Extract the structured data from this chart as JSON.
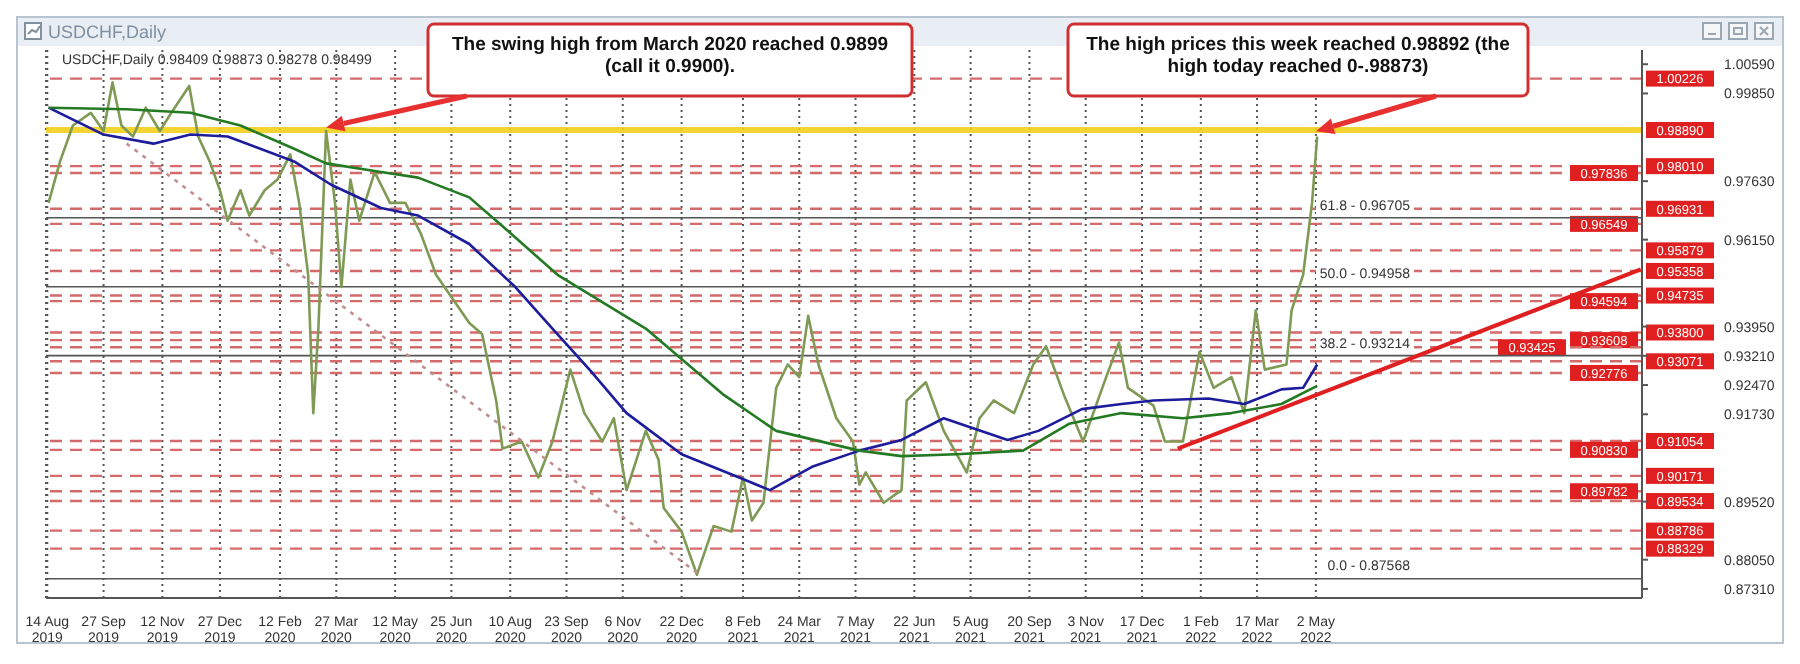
{
  "chart_data": {
    "type": "line",
    "title": "USDCHF,Daily",
    "subtitle": "USDCHF,Daily  0.98409 0.98873 0.98278 0.98499",
    "xlim": [
      "2019-08-13",
      "2023-01-12"
    ],
    "xticks": [
      {
        "value": "2019-08-14",
        "label": "14 Aug 2019"
      },
      {
        "value": "2019-09-27",
        "label": "27 Sep 2019"
      },
      {
        "value": "2019-11-12",
        "label": "12 Nov 2019"
      },
      {
        "value": "2019-12-27",
        "label": "27 Dec 2019"
      },
      {
        "value": "2020-02-12",
        "label": "12 Feb 2020"
      },
      {
        "value": "2020-03-27",
        "label": "27 Mar 2020"
      },
      {
        "value": "2020-05-12",
        "label": "12 May 2020"
      },
      {
        "value": "2020-06-25",
        "label": "25 Jun 2020"
      },
      {
        "value": "2020-08-10",
        "label": "10 Aug 2020"
      },
      {
        "value": "2020-09-23",
        "label": "23 Sep 2020"
      },
      {
        "value": "2020-11-06",
        "label": "6 Nov 2020"
      },
      {
        "value": "2020-12-22",
        "label": "22 Dec 2020"
      },
      {
        "value": "2021-02-08",
        "label": "8 Feb 2021"
      },
      {
        "value": "2021-03-24",
        "label": "24 Mar 2021"
      },
      {
        "value": "2021-05-07",
        "label": "7 May 2021"
      },
      {
        "value": "2021-06-22",
        "label": "22 Jun 2021"
      },
      {
        "value": "2021-08-05",
        "label": "5 Aug 2021"
      },
      {
        "value": "2021-09-20",
        "label": "20 Sep 2021"
      },
      {
        "value": "2021-11-03",
        "label": "3 Nov 2021"
      },
      {
        "value": "2021-12-17",
        "label": "17 Dec 2021"
      },
      {
        "value": "2022-02-01",
        "label": "1 Feb 2022"
      },
      {
        "value": "2022-03-17",
        "label": "17 Mar 2022"
      },
      {
        "value": "2022-05-02",
        "label": "2 May 2022"
      }
    ],
    "ylim": [
      0.8708,
      1.0095
    ],
    "yticks": [
      {
        "value": 1.0059,
        "label": "1.00590"
      },
      {
        "value": 0.9985,
        "label": "0.99850"
      },
      {
        "value": 0.9763,
        "label": "0.97630"
      },
      {
        "value": 0.9615,
        "label": "0.96150"
      },
      {
        "value": 0.9395,
        "label": "0.93950"
      },
      {
        "value": 0.9321,
        "label": "0.93210"
      },
      {
        "value": 0.9247,
        "label": "0.92470"
      },
      {
        "value": 0.9173,
        "label": "0.91730"
      },
      {
        "value": 0.8952,
        "label": "0.89520"
      },
      {
        "value": 0.8805,
        "label": "0.88050"
      },
      {
        "value": 0.8731,
        "label": "0.87310"
      }
    ],
    "grid": "x",
    "marker": "none",
    "series": [
      {
        "type": "line",
        "color": "#7f9a55",
        "line_style": "solid",
        "x": [
          "2019-08-15",
          "2019-08-24",
          "2019-09-03",
          "2019-09-17",
          "2019-09-27",
          "2019-10-04",
          "2019-10-11",
          "2019-10-20",
          "2019-10-30",
          "2019-11-10",
          "2019-11-19",
          "2019-12-03",
          "2019-12-10",
          "2019-12-19",
          "2019-12-27",
          "2020-01-02",
          "2020-01-12",
          "2020-01-19",
          "2020-01-31",
          "2020-02-10",
          "2020-02-20",
          "2020-02-27",
          "2020-03-05",
          "2020-03-09",
          "2020-03-13",
          "2020-03-19",
          "2020-03-26",
          "2020-03-31",
          "2020-04-07",
          "2020-04-14",
          "2020-04-26",
          "2020-05-08",
          "2020-05-20",
          "2020-06-01",
          "2020-06-13",
          "2020-07-09",
          "2020-07-19",
          "2020-07-30",
          "2020-08-04",
          "2020-08-19",
          "2020-09-01",
          "2020-09-12",
          "2020-09-26",
          "2020-10-07",
          "2020-10-21",
          "2020-10-30",
          "2020-11-09",
          "2020-11-24",
          "2020-12-04",
          "2020-12-08",
          "2020-12-22",
          "2021-01-03",
          "2021-01-16",
          "2021-01-30",
          "2021-02-08",
          "2021-02-15",
          "2021-02-24",
          "2021-03-06",
          "2021-03-15",
          "2021-03-24",
          "2021-03-31",
          "2021-04-08",
          "2021-04-22",
          "2021-05-05",
          "2021-05-10",
          "2021-05-15",
          "2021-05-29",
          "2021-06-12",
          "2021-06-16",
          "2021-07-01",
          "2021-07-15",
          "2021-08-02",
          "2021-08-12",
          "2021-08-23",
          "2021-09-08",
          "2021-09-23",
          "2021-10-03",
          "2021-10-17",
          "2021-11-01",
          "2021-11-19",
          "2021-11-29",
          "2021-12-06",
          "2021-12-26",
          "2022-01-04",
          "2022-01-18",
          "2022-01-31",
          "2022-02-11",
          "2022-02-25",
          "2022-03-07",
          "2022-03-16",
          "2022-03-23",
          "2022-04-09",
          "2022-04-13",
          "2022-04-22",
          "2022-04-29",
          "2022-05-03"
        ],
        "values": [
          0.9708,
          0.9813,
          0.9904,
          0.9936,
          0.989,
          1.0013,
          0.9904,
          0.9876,
          0.9949,
          0.989,
          0.9936,
          1.0004,
          0.9876,
          0.9813,
          0.974,
          0.9663,
          0.974,
          0.9676,
          0.974,
          0.9767,
          0.9831,
          0.9708,
          0.9526,
          0.9176,
          0.939,
          0.989,
          0.9708,
          0.9495,
          0.9767,
          0.9663,
          0.9786,
          0.9708,
          0.9708,
          0.9631,
          0.9526,
          0.9404,
          0.9376,
          0.9208,
          0.9086,
          0.9104,
          0.9013,
          0.9104,
          0.9286,
          0.9176,
          0.9104,
          0.9163,
          0.8981,
          0.9131,
          0.9058,
          0.8936,
          0.8876,
          0.8767,
          0.889,
          0.8876,
          0.9013,
          0.8904,
          0.8949,
          0.924,
          0.9299,
          0.9267,
          0.9422,
          0.9299,
          0.9163,
          0.9104,
          0.8995,
          0.9026,
          0.8949,
          0.8981,
          0.9208,
          0.9254,
          0.9131,
          0.9026,
          0.9163,
          0.9208,
          0.9176,
          0.9299,
          0.9345,
          0.9222,
          0.9104,
          0.9267,
          0.9354,
          0.924,
          0.9195,
          0.9104,
          0.9104,
          0.9331,
          0.924,
          0.9267,
          0.9176,
          0.9436,
          0.9286,
          0.9299,
          0.9436,
          0.9526,
          0.9708,
          0.9876
        ]
      },
      {
        "type": "line",
        "color": "#1c1c9c",
        "line_style": "solid",
        "x": [
          "2019-08-15",
          "2019-09-27",
          "2019-11-05",
          "2019-12-04",
          "2020-01-02",
          "2020-02-23",
          "2020-03-23",
          "2020-05-01",
          "2020-05-30",
          "2020-07-09",
          "2020-08-14",
          "2020-09-12",
          "2020-10-11",
          "2020-11-09",
          "2020-12-22",
          "2021-02-05",
          "2021-03-01",
          "2021-04-03",
          "2021-05-10",
          "2021-06-12",
          "2021-07-15",
          "2021-09-03",
          "2021-09-27",
          "2021-10-31",
          "2021-12-01",
          "2021-12-26",
          "2022-02-07",
          "2022-03-07",
          "2022-04-05",
          "2022-04-22",
          "2022-05-03"
        ],
        "values": [
          0.9949,
          0.9881,
          0.9858,
          0.9881,
          0.9876,
          0.9813,
          0.9754,
          0.9695,
          0.9676,
          0.9604,
          0.9495,
          0.939,
          0.9286,
          0.9176,
          0.9072,
          0.9013,
          0.8981,
          0.904,
          0.9081,
          0.9108,
          0.9163,
          0.9108,
          0.9131,
          0.9186,
          0.9199,
          0.9208,
          0.9213,
          0.9199,
          0.9236,
          0.924,
          0.9299
        ]
      },
      {
        "type": "line",
        "color": "#237a23",
        "line_style": "solid",
        "x": [
          "2019-08-15",
          "2019-10-15",
          "2019-12-04",
          "2020-01-12",
          "2020-02-23",
          "2020-03-19",
          "2020-05-01",
          "2020-05-30",
          "2020-07-09",
          "2020-08-04",
          "2020-09-16",
          "2020-11-24",
          "2020-12-22",
          "2021-01-24",
          "2021-03-06",
          "2021-05-10",
          "2021-06-12",
          "2021-07-25",
          "2021-09-15",
          "2021-10-21",
          "2021-12-01",
          "2022-01-18",
          "2022-02-25",
          "2022-04-05",
          "2022-05-03"
        ],
        "values": [
          0.9949,
          0.9945,
          0.9936,
          0.9904,
          0.9845,
          0.9808,
          0.9786,
          0.9772,
          0.9722,
          0.9649,
          0.9526,
          0.939,
          0.9313,
          0.9222,
          0.9131,
          0.9081,
          0.9067,
          0.9072,
          0.9081,
          0.9149,
          0.9176,
          0.9163,
          0.9176,
          0.9199,
          0.9245
        ]
      },
      {
        "type": "line",
        "color": "#e02020",
        "line_style": "solid",
        "x": [
          "2022-01-14",
          "2023-01-11"
        ],
        "values": [
          0.9086,
          0.954
        ]
      },
      {
        "type": "line",
        "color": "#c09090",
        "line_style": "dotted",
        "x": [
          "2019-10-15",
          "2021-01-05"
        ],
        "values": [
          0.9858,
          0.8767
        ]
      }
    ],
    "bands": [
      {
        "axis": "y",
        "from": 0.9885,
        "to": 0.99,
        "label": "0.98890",
        "color": "#f2cf1a"
      }
    ],
    "ref_lines": [
      {
        "axis": "y",
        "value": 1.00226,
        "label": "1.00226",
        "color": "#d46a6a",
        "line_style": "dashed"
      },
      {
        "axis": "y",
        "value": 0.9801,
        "label": "0.98010",
        "color": "#d46a6a",
        "line_style": "dashed"
      },
      {
        "axis": "y",
        "value": 0.97836,
        "label": "0.97836",
        "color": "#d46a6a",
        "line_style": "dashed"
      },
      {
        "axis": "y",
        "value": 0.96931,
        "label": "0.96931",
        "color": "#d46a6a",
        "line_style": "dashed"
      },
      {
        "axis": "y",
        "value": 0.96549,
        "label": "0.96549",
        "color": "#d46a6a",
        "line_style": "dashed"
      },
      {
        "axis": "y",
        "value": 0.95879,
        "label": "0.95879",
        "color": "#d46a6a",
        "line_style": "dashed"
      },
      {
        "axis": "y",
        "value": 0.95358,
        "label": "0.95358",
        "color": "#d46a6a",
        "line_style": "dashed"
      },
      {
        "axis": "y",
        "value": 0.94735,
        "label": "0.94735",
        "color": "#d46a6a",
        "line_style": "dashed"
      },
      {
        "axis": "y",
        "value": 0.94594,
        "label": "0.94594",
        "color": "#d46a6a",
        "line_style": "dashed"
      },
      {
        "axis": "y",
        "value": 0.938,
        "label": "0.93800",
        "color": "#d46a6a",
        "line_style": "dashed"
      },
      {
        "axis": "y",
        "value": 0.93608,
        "label": "0.93608",
        "color": "#d46a6a",
        "line_style": "dashed"
      },
      {
        "axis": "y",
        "value": 0.93425,
        "label": "0.93425",
        "color": "#d46a6a",
        "line_style": "dashed"
      },
      {
        "axis": "y",
        "value": 0.93071,
        "label": "0.93071",
        "color": "#d46a6a",
        "line_style": "dashed"
      },
      {
        "axis": "y",
        "value": 0.92776,
        "label": "0.92776",
        "color": "#d46a6a",
        "line_style": "dashed"
      },
      {
        "axis": "y",
        "value": 0.91054,
        "label": "0.91054",
        "color": "#d46a6a",
        "line_style": "dashed"
      },
      {
        "axis": "y",
        "value": 0.9083,
        "label": "0.90830",
        "color": "#d46a6a",
        "line_style": "dashed"
      },
      {
        "axis": "y",
        "value": 0.90171,
        "label": "0.90171",
        "color": "#d46a6a",
        "line_style": "dashed"
      },
      {
        "axis": "y",
        "value": 0.89782,
        "label": "0.89782",
        "color": "#d46a6a",
        "line_style": "dashed"
      },
      {
        "axis": "y",
        "value": 0.89534,
        "label": "0.89534",
        "color": "#d46a6a",
        "line_style": "dashed"
      },
      {
        "axis": "y",
        "value": 0.88786,
        "label": "0.88786",
        "color": "#d46a6a",
        "line_style": "dashed"
      },
      {
        "axis": "y",
        "value": 0.88329,
        "label": "0.88329",
        "color": "#d46a6a",
        "line_style": "dashed"
      },
      {
        "axis": "y",
        "value": 0.96705,
        "color": "#555555",
        "line_style": "solid"
      },
      {
        "axis": "y",
        "value": 0.94958,
        "color": "#555555",
        "line_style": "solid"
      },
      {
        "axis": "y",
        "value": 0.93214,
        "color": "#555555",
        "line_style": "solid"
      },
      {
        "axis": "y",
        "value": 0.87568,
        "color": "#555555",
        "line_style": "solid"
      }
    ],
    "annotations": [
      {
        "text": "The swing high from March 2020 reached 0.9899 (call it 0.9900).",
        "x": "2020-03-19",
        "y": 0.9899
      },
      {
        "text": "The high prices this week reached 0.98892 (the high today reached 0-.98873)",
        "x": "2022-05-02",
        "y": 0.98892
      },
      {
        "text": "61.8 - 0.96705",
        "y": 0.96705
      },
      {
        "text": "50.0 - 0.94958",
        "y": 0.94958
      },
      {
        "text": "38.2 - 0.93214",
        "y": 0.93214
      },
      {
        "text": "0.0 - 0.87568",
        "y": 0.87568
      }
    ]
  }
}
